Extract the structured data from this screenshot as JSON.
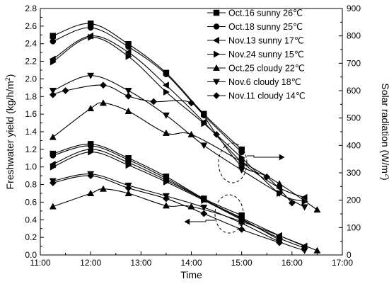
{
  "chart_data": {
    "type": "line",
    "xlabel": "Time",
    "ylabel_left": "Freshwater yield (kg/h/m²)",
    "ylabel_left_parts": [
      "Freshwater yield (kg/h/m",
      "2",
      ")"
    ],
    "ylabel_right": "Solar radiation (W/m²)",
    "ylabel_right_parts": [
      "Solar radiation (W/m",
      "2",
      ")"
    ],
    "x_ticks": [
      "11:00",
      "12:00",
      "13:00",
      "14:00",
      "15:00",
      "16:00",
      "17:00"
    ],
    "xlim": [
      11,
      17
    ],
    "ylim_left": [
      0,
      2.8
    ],
    "ylim_right": [
      0,
      900
    ],
    "y_ticks_left": [
      "0.0",
      "0.2",
      "0.4",
      "0.6",
      "0.8",
      "1.0",
      "1.2",
      "1.4",
      "1.6",
      "1.8",
      "2.0",
      "2.2",
      "2.4",
      "2.6",
      "2.8"
    ],
    "y_ticks_right": [
      "0",
      "100",
      "200",
      "300",
      "400",
      "500",
      "600",
      "700",
      "800",
      "900"
    ],
    "legend_position": "top-right",
    "series": [
      {
        "name": "Oct.16   sunny 26℃",
        "marker": "square",
        "axis": "right",
        "x": [
          11.25,
          12.0,
          12.75,
          13.5,
          14.25,
          15.0
        ],
        "y": [
          800,
          845,
          770,
          665,
          515,
          385
        ]
      },
      {
        "name": "Oct.18   sunny 25℃",
        "marker": "circle",
        "axis": "right",
        "x": [
          11.25,
          12.0,
          12.75,
          13.5,
          14.25,
          15.0
        ],
        "y": [
          780,
          830,
          760,
          660,
          510,
          375
        ]
      },
      {
        "name": "Nov.13   sunny 17℃",
        "marker": "triangle-left",
        "axis": "right",
        "x": [
          11.25,
          12.0,
          12.75,
          13.5,
          14.25,
          15.0,
          15.75,
          16.25
        ],
        "y": [
          715,
          800,
          740,
          620,
          485,
          340,
          245,
          210
        ]
      },
      {
        "name": "Nov.24   sunny 15℃",
        "marker": "triangle-right",
        "axis": "right",
        "x": [
          11.25,
          12.0,
          12.75,
          13.5,
          14.25,
          15.0,
          15.75,
          16.25
        ],
        "y": [
          705,
          795,
          725,
          595,
          480,
          355,
          225,
          195
        ]
      },
      {
        "name": "Oct.25   cloudy 22℃",
        "marker": "triangle-up",
        "axis": "right",
        "x": [
          11.25,
          12.0,
          12.25,
          12.75,
          13.5,
          14.0,
          15.0,
          15.75,
          16.5
        ],
        "y": [
          430,
          535,
          555,
          525,
          445,
          440,
          340,
          260,
          165
        ]
      },
      {
        "name": "Nov.6   cloudy 18℃",
        "marker": "triangle-down",
        "axis": "right",
        "x": [
          11.25,
          12.0,
          12.75,
          13.5,
          14.25,
          15.0,
          15.75,
          16.25
        ],
        "y": [
          600,
          655,
          600,
          510,
          400,
          310,
          225,
          175
        ]
      },
      {
        "name": "Nov.11   cloudy 14℃",
        "marker": "diamond",
        "axis": "right",
        "x": [
          11.25,
          11.5,
          12.25,
          12.75,
          13.25,
          14.0,
          14.5,
          15.0,
          15.5,
          16.0
        ],
        "y": [
          585,
          600,
          620,
          580,
          560,
          555,
          440,
          325,
          285,
          190
        ]
      },
      {
        "name": "",
        "marker": "square",
        "axis": "left",
        "x": [
          11.25,
          12.0,
          12.75,
          13.5,
          14.25,
          15.0
        ],
        "y": [
          1.15,
          1.26,
          1.1,
          0.89,
          0.64,
          0.45
        ]
      },
      {
        "name": "",
        "marker": "circle",
        "axis": "left",
        "x": [
          11.25,
          12.0,
          12.75,
          13.5,
          14.25,
          15.0,
          15.75
        ],
        "y": [
          1.13,
          1.24,
          1.08,
          0.87,
          0.63,
          0.41,
          0.17
        ]
      },
      {
        "name": "",
        "marker": "triangle-left",
        "axis": "left",
        "x": [
          11.25,
          12.0,
          12.75,
          13.5,
          14.25,
          15.0,
          15.75,
          16.25
        ],
        "y": [
          1.03,
          1.2,
          1.05,
          0.85,
          0.63,
          0.42,
          0.22,
          0.1
        ]
      },
      {
        "name": "",
        "marker": "triangle-right",
        "axis": "left",
        "x": [
          11.25,
          12.0,
          12.75,
          13.5,
          14.25,
          15.0,
          15.75,
          16.25
        ],
        "y": [
          1.0,
          1.17,
          1.02,
          0.83,
          0.62,
          0.4,
          0.19,
          0.08
        ]
      },
      {
        "name": "",
        "marker": "triangle-down",
        "axis": "left",
        "x": [
          11.25,
          12.0,
          12.75,
          13.5,
          14.25,
          15.0,
          15.75,
          16.25
        ],
        "y": [
          0.84,
          0.92,
          0.79,
          0.67,
          0.54,
          0.36,
          0.15,
          0.05
        ]
      },
      {
        "name": "",
        "marker": "diamond",
        "axis": "left",
        "x": [
          11.25,
          12.0,
          12.75,
          13.5,
          14.25,
          15.0,
          15.75
        ],
        "y": [
          0.82,
          0.9,
          0.76,
          0.64,
          0.47,
          0.29,
          0.14
        ]
      },
      {
        "name": "",
        "marker": "triangle-up",
        "axis": "left",
        "x": [
          11.25,
          12.0,
          12.25,
          12.75,
          13.5,
          14.0,
          15.0,
          16.5
        ],
        "y": [
          0.55,
          0.7,
          0.75,
          0.7,
          0.56,
          0.55,
          0.38,
          0.05
        ]
      }
    ]
  }
}
